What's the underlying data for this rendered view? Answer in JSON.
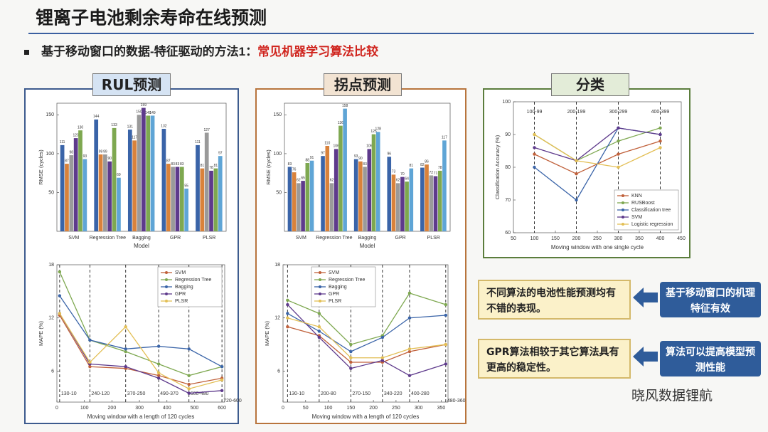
{
  "slide": {
    "title": "锂离子电池剩余寿命在线预测",
    "bullet": "基于移动窗口的数据-特征驱动的方法1：",
    "bullet_highlight": "常见机器学习算法比较",
    "panels": [
      "RUL预测",
      "拐点预测",
      "分类"
    ],
    "notes": [
      "不同算法的电池性能预测均有不错的表现。",
      "GPR算法相较于其它算法具有更高的稳定性。"
    ],
    "conclusions": [
      "基于移动窗口的机理特征有效",
      "算法可以提高模型预测性能"
    ],
    "watermark": "晓风数据锂航"
  },
  "chart_data": [
    {
      "type": "bar",
      "x_label": "Model",
      "y_label": "RMSE (cycles)",
      "categories": [
        "SVM",
        "Regression Tree",
        "Bagging",
        "GPR",
        "PLSR"
      ],
      "series": [
        {
          "color": "#3a64a8",
          "values": [
            111,
            144,
            131,
            132,
            111
          ]
        },
        {
          "color": "#d9823b",
          "values": [
            87,
            99,
            117,
            87,
            81
          ]
        },
        {
          "color": "#9a9a9a",
          "values": [
            98,
            99,
            150,
            83,
            127
          ]
        },
        {
          "color": "#5e3a8c",
          "values": [
            120,
            90,
            159,
            83,
            78
          ]
        },
        {
          "color": "#7ea850",
          "values": [
            130,
            133,
            149,
            83,
            81
          ]
        },
        {
          "color": "#5fa5d6",
          "values": [
            93,
            69,
            149,
            55,
            97
          ]
        }
      ],
      "ylim": [
        0,
        165
      ],
      "yticks": [
        50,
        100,
        150
      ]
    },
    {
      "type": "bar",
      "x_label": "Model",
      "y_label": "RMSE (cycles)",
      "categories": [
        "SVM",
        "Regression Tree",
        "Bagging",
        "GPR",
        "PLSR"
      ],
      "series": [
        {
          "color": "#3a64a8",
          "values": [
            83,
            97,
            93,
            96,
            82
          ]
        },
        {
          "color": "#d9823b",
          "values": [
            76,
            110,
            90,
            73,
            86
          ]
        },
        {
          "color": "#9a9a9a",
          "values": [
            62,
            62,
            83,
            62,
            72
          ]
        },
        {
          "color": "#5e3a8c",
          "values": [
            65,
            106,
            106,
            70,
            71
          ]
        },
        {
          "color": "#7ea850",
          "values": [
            88,
            136,
            125,
            64,
            78
          ]
        },
        {
          "color": "#5fa5d6",
          "values": [
            91,
            158,
            128,
            81,
            117
          ]
        }
      ],
      "ylim": [
        0,
        165
      ],
      "yticks": [
        50,
        100,
        150
      ]
    },
    {
      "type": "line",
      "x_label": "Moving window with a length of 120 cycles",
      "y_label": "MAPE (%)",
      "x": [
        10,
        120,
        250,
        370,
        480,
        600
      ],
      "annotations": [
        "130-10",
        "240-120",
        "370-250",
        "490-370",
        "600-480",
        "720-600"
      ],
      "series": [
        {
          "name": "SVM",
          "color": "#c0603a",
          "values": [
            12.3,
            6.5,
            6.3,
            5.5,
            4.5,
            5.2
          ]
        },
        {
          "name": "Regression Tree",
          "color": "#7ea850",
          "values": [
            17.2,
            9.5,
            8.2,
            6.8,
            5.5,
            6.5
          ]
        },
        {
          "name": "Bagging",
          "color": "#3a64a8",
          "values": [
            14.5,
            9.5,
            8.5,
            8.8,
            8.5,
            6.5
          ]
        },
        {
          "name": "GPR",
          "color": "#5e3a8c",
          "values": [
            12.5,
            6.8,
            6.5,
            5.2,
            3.5,
            3.8
          ]
        },
        {
          "name": "PLSR",
          "color": "#e3bf55",
          "values": [
            12.5,
            7,
            11,
            5.8,
            4,
            5
          ]
        }
      ],
      "xlim": [
        0,
        610
      ],
      "xticks": [
        0,
        100,
        200,
        300,
        400,
        500,
        600
      ],
      "ylim": [
        2.5,
        18
      ],
      "yticks": [
        6,
        12,
        18
      ],
      "legend": "upper right"
    },
    {
      "type": "line",
      "x_label": "Moving window with a length of 120 cycles",
      "y_label": "MAPE (%)",
      "x": [
        10,
        80,
        150,
        220,
        280,
        360
      ],
      "annotations": [
        "130-10",
        "200-80",
        "270-150",
        "340-220",
        "400-280",
        "480-360"
      ],
      "series": [
        {
          "name": "SVM",
          "color": "#c0603a",
          "values": [
            11,
            10,
            7,
            7,
            8.2,
            9
          ]
        },
        {
          "name": "Regression Tree",
          "color": "#7ea850",
          "values": [
            14,
            12.5,
            9,
            10,
            14.8,
            13.5
          ]
        },
        {
          "name": "Bagging",
          "color": "#3a64a8",
          "values": [
            12.5,
            10.5,
            8.2,
            9.8,
            12,
            12.3
          ]
        },
        {
          "name": "GPR",
          "color": "#5e3a8c",
          "values": [
            13.5,
            9.8,
            6.3,
            7.2,
            5.5,
            6.8
          ]
        },
        {
          "name": "PLSR",
          "color": "#e3bf55",
          "values": [
            12,
            11,
            7.5,
            7.5,
            8.5,
            9
          ]
        }
      ],
      "xlim": [
        0,
        365
      ],
      "xticks": [
        0,
        50,
        100,
        150,
        200,
        250,
        300,
        350
      ],
      "ylim": [
        2.5,
        18
      ],
      "yticks": [
        6,
        12,
        18
      ],
      "legend": "upper left"
    },
    {
      "type": "line",
      "x_label": "Moving window with one single cycle",
      "y_label": "Classification Accuracy (%)",
      "x": [
        100,
        200,
        300,
        400
      ],
      "annotations": [
        "100-99",
        "200-199",
        "300-299",
        "400-399"
      ],
      "series": [
        {
          "name": "KNN",
          "color": "#c0603a",
          "values": [
            84,
            78,
            84,
            88
          ]
        },
        {
          "name": "RUSBoost",
          "color": "#7ea850",
          "values": [
            90,
            82,
            88,
            92
          ]
        },
        {
          "name": "Classification tree",
          "color": "#3a64a8",
          "values": [
            80,
            70,
            92,
            90
          ]
        },
        {
          "name": "SVM",
          "color": "#5e3a8c",
          "values": [
            86,
            82,
            92,
            90
          ]
        },
        {
          "name": "Logistic regression",
          "color": "#e3bf55",
          "values": [
            90,
            82,
            80,
            86
          ]
        }
      ],
      "xlim": [
        50,
        450
      ],
      "xticks": [
        50,
        100,
        150,
        200,
        250,
        300,
        350,
        400,
        450
      ],
      "ylim": [
        60,
        100
      ],
      "yticks": [
        60,
        70,
        80,
        90,
        100
      ],
      "legend": "lower right"
    }
  ]
}
